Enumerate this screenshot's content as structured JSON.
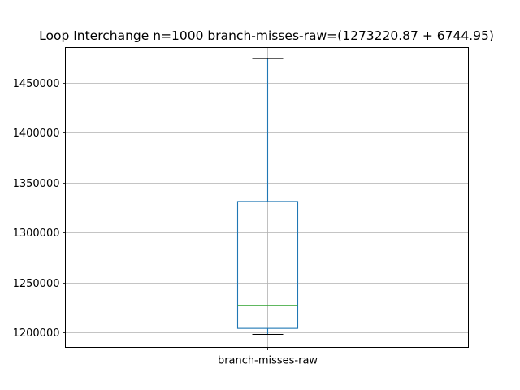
{
  "chart_data": {
    "type": "box",
    "title": "Loop Interchange n=1000  branch-misses-raw=(1273220.87 + 6744.95)",
    "xlabel": "",
    "ylabel": "",
    "categories": [
      "branch-misses-raw"
    ],
    "boxes": [
      {
        "label": "branch-misses-raw",
        "whisker_low": 1198000,
        "q1": 1204000,
        "median": 1227000,
        "q3": 1331000,
        "whisker_high": 1474000
      }
    ],
    "ylim": [
      1185000,
      1485000
    ],
    "yticks": [
      1200000,
      1250000,
      1300000,
      1350000,
      1400000,
      1450000
    ],
    "ytick_labels": [
      "1200000",
      "1250000",
      "1300000",
      "1350000",
      "1400000",
      "1450000"
    ],
    "grid": true,
    "colors": {
      "box": "#1f77b4",
      "median": "#2ca02c",
      "whisker": "#1f77b4",
      "cap": "#000000",
      "grid": "#b0b0b0"
    }
  }
}
